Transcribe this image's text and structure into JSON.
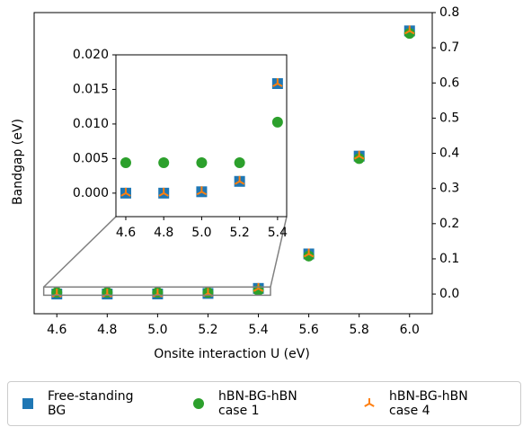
{
  "chart_data": [
    {
      "type": "scatter",
      "x_label": "Onsite interaction U (eV)",
      "y_label": "Bandgap (eV)",
      "x": [
        4.6,
        4.8,
        5.0,
        5.2,
        5.4,
        5.6,
        5.8,
        6.0
      ],
      "xlim": [
        4.51,
        6.09
      ],
      "xticks": [
        4.6,
        4.8,
        {
          "value": 5.0,
          "label": "5.0"
        },
        5.2,
        5.4,
        5.6,
        5.8,
        {
          "value": 6.0,
          "label": "6.0"
        }
      ],
      "ylim": [
        -0.056,
        0.8
      ],
      "yticks": [
        {
          "value": 0.0,
          "label": "0.0"
        },
        0.1,
        0.2,
        0.3,
        0.4,
        0.5,
        0.6,
        0.7,
        0.8
      ],
      "y_axis_side": "right",
      "series": [
        {
          "name": "Free-standing BG",
          "color": "#1f77b4",
          "marker": "square",
          "values": [
            0,
            0,
            0.0002,
            0.0017,
            0.016,
            0.114,
            0.392,
            0.748
          ]
        },
        {
          "name": "hBN-BG-hBN case 1",
          "color": "#2ca02c",
          "marker": "circle",
          "values": [
            0.0044,
            0.0044,
            0.0044,
            0.0044,
            0.0103,
            0.108,
            0.385,
            0.741
          ]
        },
        {
          "name": "hBN-BG-hBN case 4",
          "color": "#ff7f0e",
          "marker": "tri",
          "values": [
            0,
            0,
            0.0002,
            0.0017,
            0.016,
            0.114,
            0.392,
            0.748
          ]
        }
      ]
    },
    {
      "type": "scatter",
      "x": [
        4.6,
        4.8,
        5.0,
        5.2,
        5.4
      ],
      "xlim": [
        4.548,
        5.448
      ],
      "xticks": [
        4.6,
        4.8,
        {
          "value": 5.0,
          "label": "5.0"
        },
        5.2,
        5.4
      ],
      "ylim": [
        -0.0034,
        0.02
      ],
      "yticks": [
        {
          "value": 0.0,
          "label": "0.000"
        },
        {
          "value": 0.005,
          "label": "0.005"
        },
        {
          "value": 0.01,
          "label": "0.010"
        },
        {
          "value": 0.015,
          "label": "0.015"
        },
        {
          "value": 0.02,
          "label": "0.020"
        }
      ],
      "y_axis_side": "left",
      "series": [
        {
          "color": "#1f77b4",
          "marker": "square",
          "values": [
            0,
            0,
            0.0002,
            0.0017,
            0.01584
          ]
        },
        {
          "color": "#2ca02c",
          "marker": "circle",
          "values": [
            0.0044,
            0.0044,
            0.0044,
            0.0044,
            0.01026
          ]
        },
        {
          "color": "#ff7f0e",
          "marker": "tri",
          "values": [
            0,
            0,
            0.0002,
            0.0017,
            0.01584
          ]
        }
      ]
    }
  ]
}
